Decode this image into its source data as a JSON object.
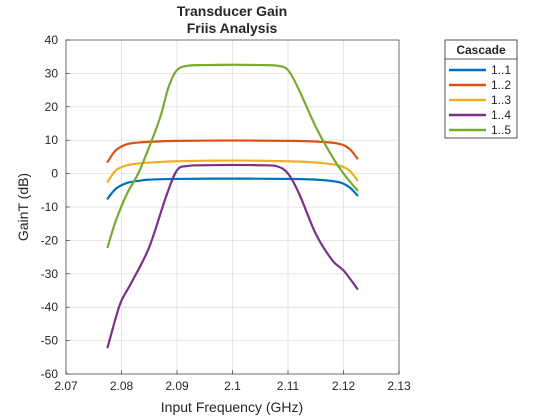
{
  "chart_data": {
    "type": "line",
    "title": "Transducer Gain",
    "subtitle": "Friis Analysis",
    "xlabel": "Input Frequency (GHz)",
    "ylabel": "GainT (dB)",
    "xlim": [
      2.07,
      2.13
    ],
    "ylim": [
      -60,
      40
    ],
    "xticks": [
      2.07,
      2.08,
      2.09,
      2.1,
      2.11,
      2.12,
      2.13
    ],
    "xtick_labels": [
      "2.07",
      "2.08",
      "2.09",
      "2.1",
      "2.11",
      "2.12",
      "2.13"
    ],
    "yticks": [
      -60,
      -50,
      -40,
      -30,
      -20,
      -10,
      0,
      10,
      20,
      30,
      40
    ],
    "ytick_labels": [
      "-60",
      "-50",
      "-40",
      "-30",
      "-20",
      "-10",
      "0",
      "10",
      "20",
      "30",
      "40"
    ],
    "grid": true,
    "legend": {
      "title": "Cascade",
      "placement": "outside-right"
    },
    "series": [
      {
        "name": "1..1",
        "color": "#0072BD",
        "x": [
          2.0775,
          2.079,
          2.081,
          2.083,
          2.085,
          2.09,
          2.1,
          2.11,
          2.115,
          2.119,
          2.121,
          2.1225
        ],
        "y": [
          -7.5,
          -4.5,
          -2.8,
          -2.2,
          -1.8,
          -1.6,
          -1.5,
          -1.6,
          -1.8,
          -2.5,
          -4.0,
          -6.5
        ]
      },
      {
        "name": "1..2",
        "color": "#D95319",
        "x": [
          2.0775,
          2.079,
          2.081,
          2.083,
          2.085,
          2.09,
          2.1,
          2.11,
          2.115,
          2.119,
          2.121,
          2.1225
        ],
        "y": [
          3.5,
          7.0,
          8.8,
          9.3,
          9.5,
          9.8,
          9.9,
          9.8,
          9.6,
          9.0,
          7.5,
          4.5
        ]
      },
      {
        "name": "1..3",
        "color": "#EDB120",
        "x": [
          2.0775,
          2.079,
          2.081,
          2.083,
          2.085,
          2.09,
          2.1,
          2.11,
          2.115,
          2.119,
          2.121,
          2.1225
        ],
        "y": [
          -2.5,
          1.0,
          2.5,
          3.0,
          3.3,
          3.7,
          3.9,
          3.7,
          3.3,
          2.5,
          1.0,
          -2.0
        ]
      },
      {
        "name": "1..4",
        "color": "#7E2F8E",
        "x": [
          2.0775,
          2.079,
          2.08,
          2.082,
          2.085,
          2.088,
          2.09,
          2.092,
          2.095,
          2.1,
          2.105,
          2.108,
          2.11,
          2.112,
          2.115,
          2.118,
          2.12,
          2.1225
        ],
        "y": [
          -52,
          -43,
          -38,
          -32,
          -22,
          -7,
          1.0,
          2.3,
          2.5,
          2.6,
          2.5,
          2.2,
          0.0,
          -6,
          -18,
          -26,
          -29,
          -34.5
        ]
      },
      {
        "name": "1..5",
        "color": "#77AC30",
        "x": [
          2.0775,
          2.079,
          2.081,
          2.083,
          2.085,
          2.087,
          2.0885,
          2.09,
          2.092,
          2.095,
          2.1,
          2.105,
          2.108,
          2.11,
          2.112,
          2.115,
          2.118,
          2.12,
          2.1225
        ],
        "y": [
          -22,
          -14,
          -6,
          0,
          8,
          17,
          26,
          31,
          32.3,
          32.5,
          32.6,
          32.5,
          32.3,
          31,
          25,
          14,
          5,
          0,
          -5
        ]
      }
    ]
  }
}
